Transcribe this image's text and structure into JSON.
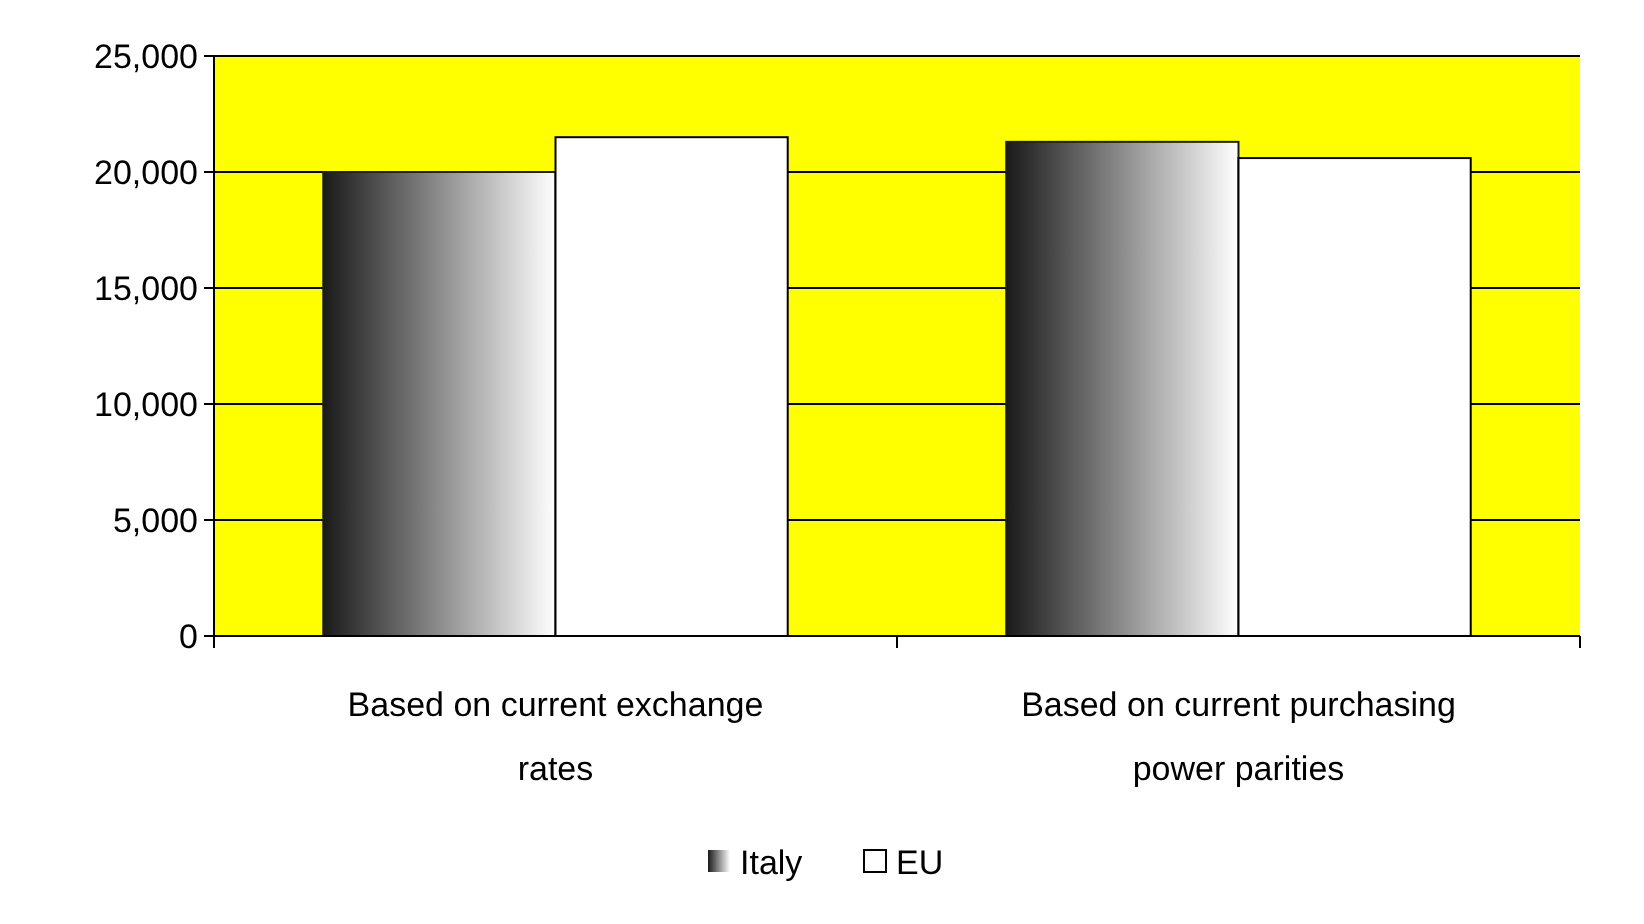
{
  "chart_data": {
    "type": "bar",
    "categories": [
      "Based on current exchange rates",
      "Based on current purchasing power parities"
    ],
    "series": [
      {
        "name": "Italy",
        "color": "#1a1a1a",
        "values": [
          20000,
          21300
        ]
      },
      {
        "name": "EU",
        "color": "#ffffff",
        "values": [
          21500,
          20600
        ]
      }
    ],
    "ylim": [
      0,
      25000
    ],
    "yticks": [
      {
        "value": 0,
        "label": "0"
      },
      {
        "value": 5000,
        "label": "5,000"
      },
      {
        "value": 10000,
        "label": "10,000"
      },
      {
        "value": 15000,
        "label": "15,000"
      },
      {
        "value": 20000,
        "label": "20,000"
      },
      {
        "value": 25000,
        "label": "25,000"
      }
    ],
    "grid": "y",
    "legend": "bottom"
  }
}
